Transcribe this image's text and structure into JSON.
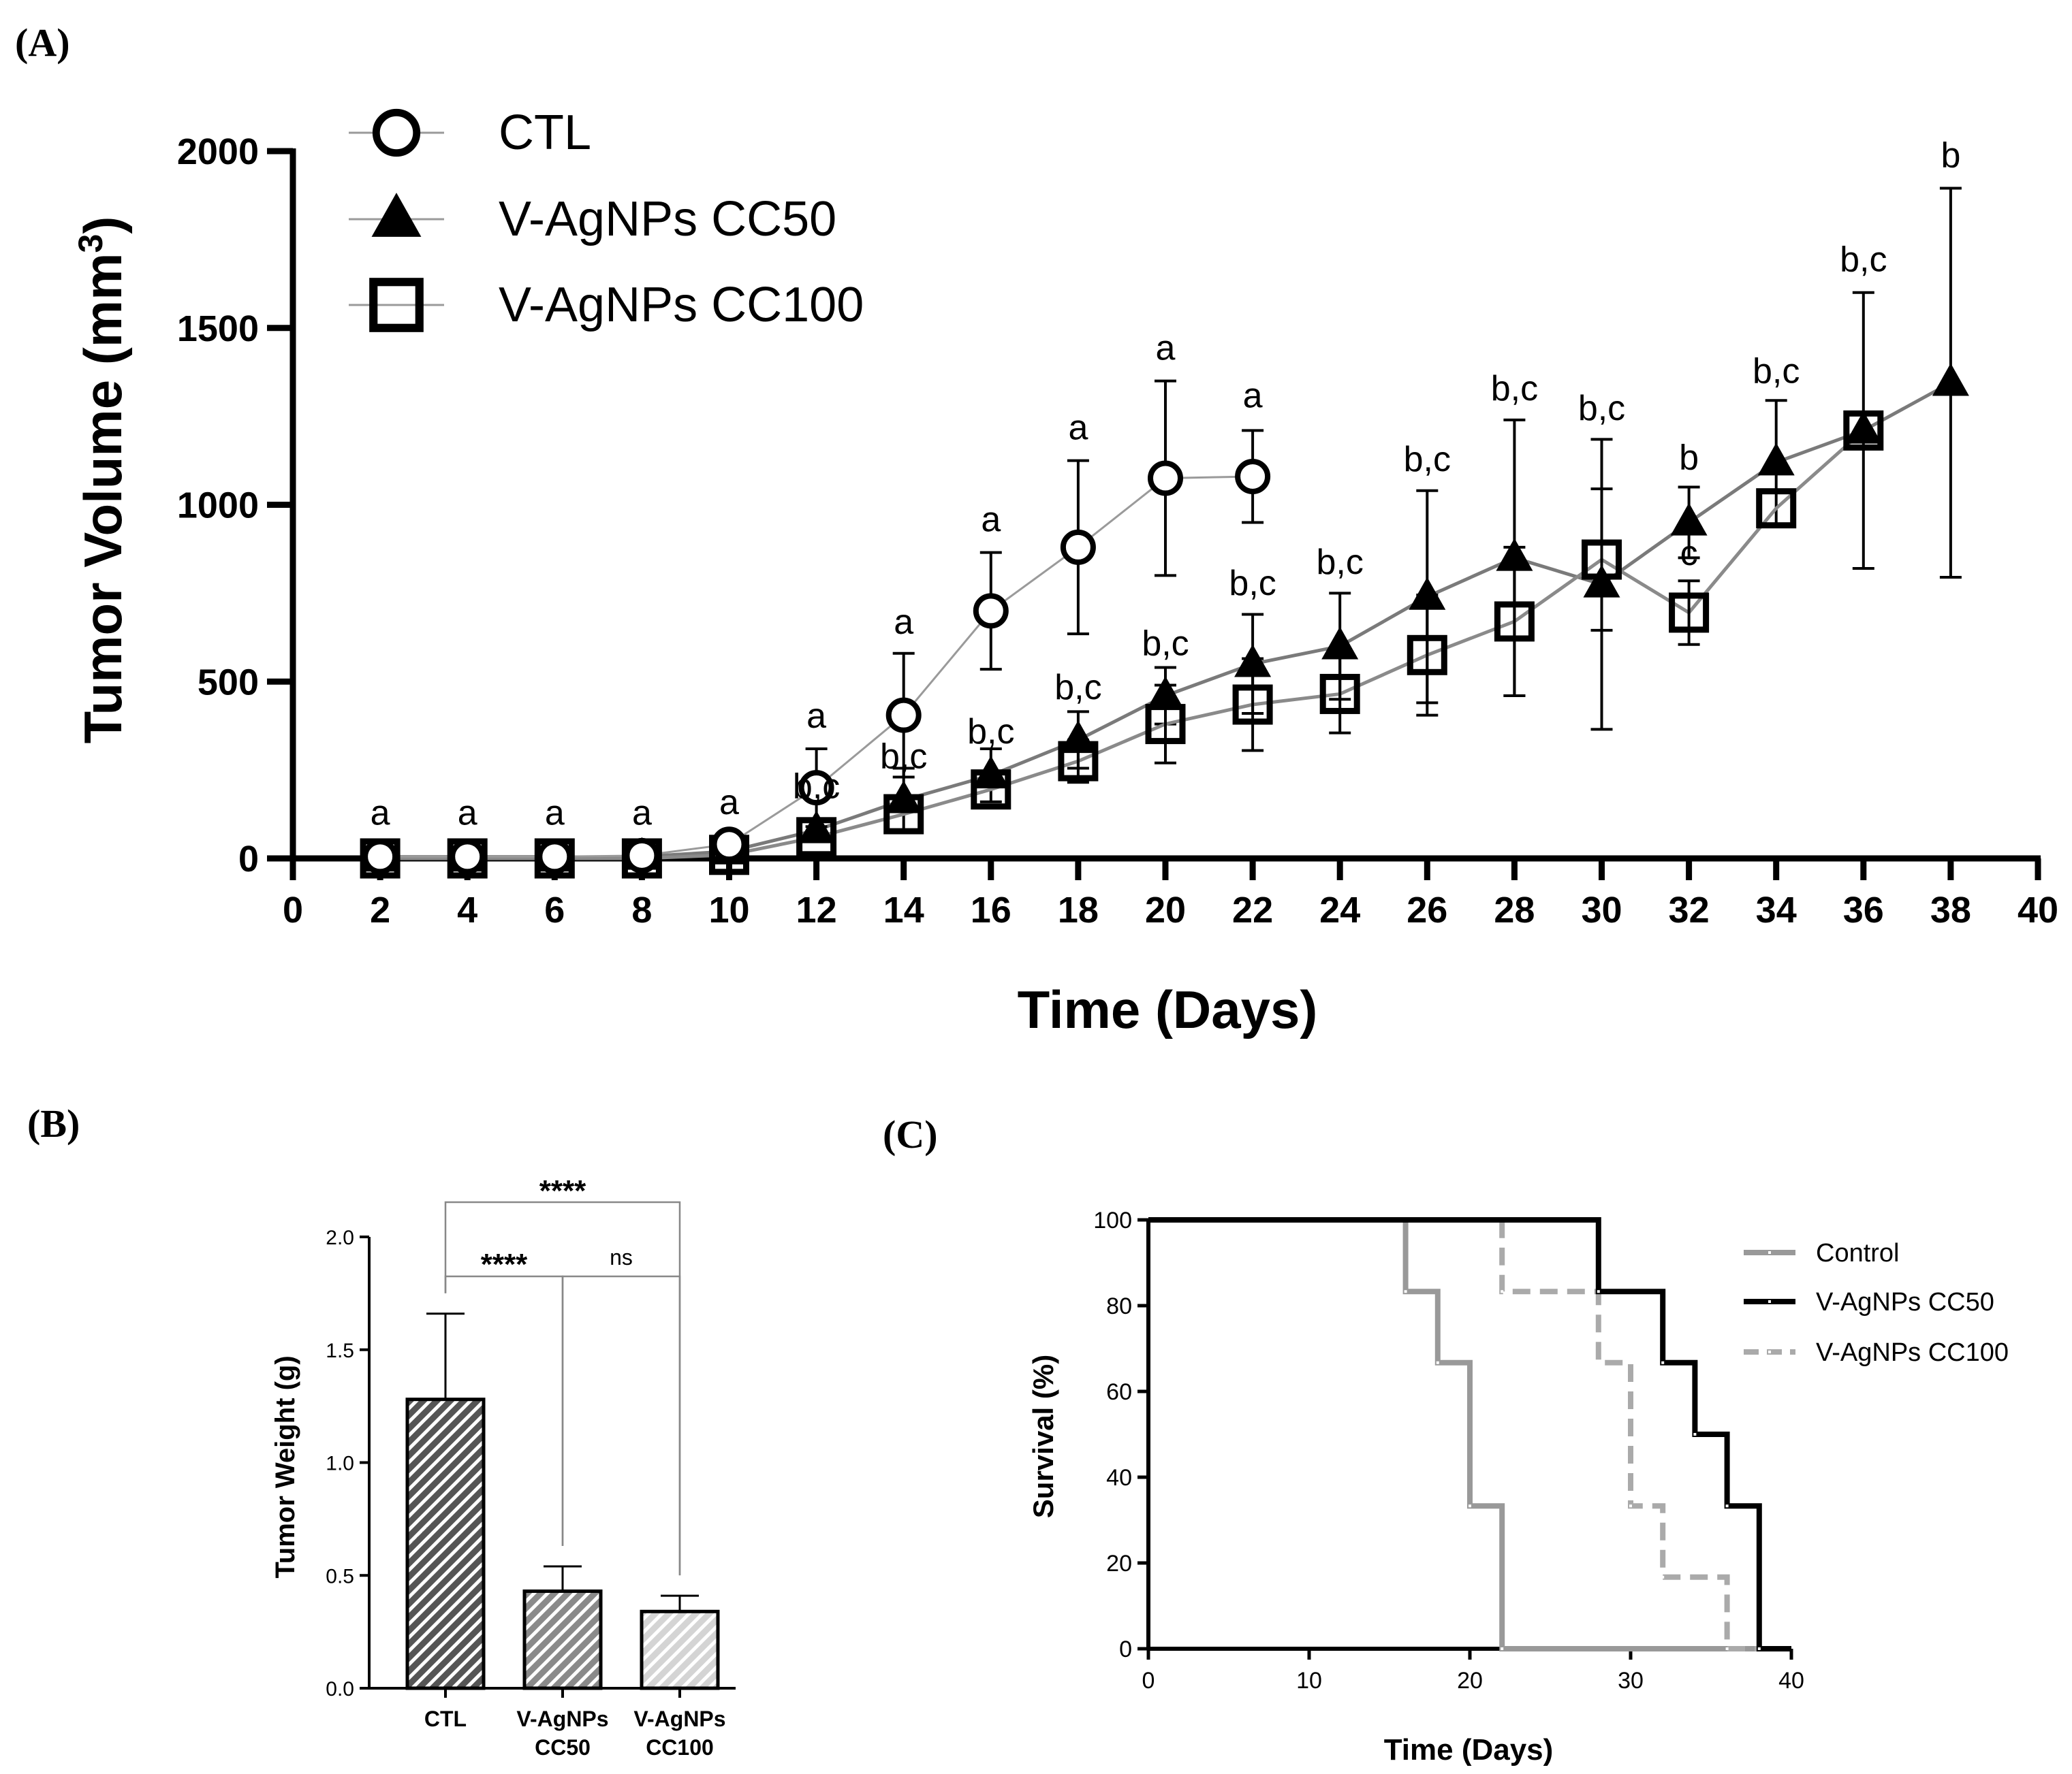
{
  "panel_labels": {
    "a": "(A)",
    "b": "(B)",
    "c": "(C)"
  },
  "chart_data": [
    {
      "id": "A",
      "type": "line",
      "xlabel": "Time (Days)",
      "ylabel": "Tumor Volume (mm",
      "ylabel_sup": "3",
      "ylabel_close": ")",
      "xlim": [
        0,
        40
      ],
      "ylim": [
        0,
        2000
      ],
      "xticks": [
        0,
        2,
        4,
        6,
        8,
        10,
        12,
        14,
        16,
        18,
        20,
        22,
        24,
        26,
        28,
        30,
        32,
        34,
        36,
        38,
        40
      ],
      "yticks": [
        0,
        500,
        1000,
        1500,
        2000
      ],
      "series": [
        {
          "name": "CTL",
          "marker": "open-circle",
          "x": [
            2,
            4,
            6,
            8,
            10,
            12,
            14,
            16,
            18,
            20,
            22
          ],
          "y": [
            5,
            5,
            5,
            8,
            40,
            200,
            405,
            700,
            880,
            1075,
            1080
          ],
          "err": [
            0,
            0,
            0,
            0,
            20,
            110,
            175,
            165,
            245,
            275,
            130
          ]
        },
        {
          "name": "V-AgNPs CC50",
          "marker": "filled-triangle",
          "x": [
            2,
            4,
            6,
            8,
            10,
            12,
            14,
            16,
            18,
            20,
            22,
            24,
            26,
            28,
            30,
            32,
            34,
            36,
            38
          ],
          "y": [
            0,
            0,
            0,
            5,
            20,
            80,
            165,
            235,
            335,
            460,
            550,
            600,
            740,
            850,
            775,
            950,
            1120,
            1210,
            1345
          ],
          "err": [
            0,
            0,
            0,
            0,
            0,
            0,
            90,
            75,
            80,
            80,
            140,
            150,
            300,
            390,
            410,
            100,
            175,
            390,
            550
          ]
        },
        {
          "name": "V-AgNPs CC100",
          "marker": "open-square",
          "x": [
            2,
            4,
            6,
            8,
            10,
            12,
            14,
            16,
            18,
            20,
            22,
            24,
            26,
            28,
            30,
            32,
            34,
            36
          ],
          "y": [
            0,
            0,
            0,
            0,
            10,
            60,
            125,
            195,
            275,
            380,
            435,
            465,
            575,
            670,
            845,
            695,
            990,
            1210
          ],
          "err": [
            0,
            0,
            0,
            0,
            0,
            0,
            0,
            0,
            60,
            110,
            130,
            110,
            170,
            210,
            200,
            90,
            0,
            0
          ]
        }
      ],
      "annotations": [
        {
          "x": 2,
          "y": 95,
          "text": "a"
        },
        {
          "x": 4,
          "y": 95,
          "text": "a"
        },
        {
          "x": 6,
          "y": 95,
          "text": "a"
        },
        {
          "x": 8,
          "y": 95,
          "text": "a"
        },
        {
          "x": 10,
          "y": 125,
          "text": "a"
        },
        {
          "x": 12,
          "y": 370,
          "text": "a"
        },
        {
          "x": 12,
          "y": 170,
          "text": "b,c"
        },
        {
          "x": 14,
          "y": 635,
          "text": "a"
        },
        {
          "x": 14,
          "y": 255,
          "text": "b,c"
        },
        {
          "x": 16,
          "y": 925,
          "text": "a"
        },
        {
          "x": 16,
          "y": 325,
          "text": "b,c"
        },
        {
          "x": 18,
          "y": 1185,
          "text": "a"
        },
        {
          "x": 18,
          "y": 450,
          "text": "b,c"
        },
        {
          "x": 20,
          "y": 1410,
          "text": "a"
        },
        {
          "x": 20,
          "y": 575,
          "text": "b,c"
        },
        {
          "x": 22,
          "y": 1275,
          "text": "a"
        },
        {
          "x": 22,
          "y": 745,
          "text": "b,c"
        },
        {
          "x": 24,
          "y": 805,
          "text": "b,c"
        },
        {
          "x": 26,
          "y": 1095,
          "text": "b,c"
        },
        {
          "x": 28,
          "y": 1295,
          "text": "b,c"
        },
        {
          "x": 30,
          "y": 1240,
          "text": "b,c"
        },
        {
          "x": 32,
          "y": 1100,
          "text": "b"
        },
        {
          "x": 32,
          "y": 830,
          "text": "c"
        },
        {
          "x": 34,
          "y": 1345,
          "text": "b,c"
        },
        {
          "x": 36,
          "y": 1660,
          "text": "b,c"
        },
        {
          "x": 38,
          "y": 1955,
          "text": "b"
        }
      ],
      "legend": "top-left"
    },
    {
      "id": "B",
      "type": "bar",
      "ylabel": "Tumor Weight (g)",
      "ylim": [
        0,
        2.0
      ],
      "yticks": [
        "0.0",
        "0.5",
        "1.0",
        "1.5",
        "2.0"
      ],
      "categories": [
        "CTL",
        "V-AgNPs CC50",
        "V-AgNPs CC100"
      ],
      "category_lines": [
        [
          "CTL"
        ],
        [
          "V-AgNPs",
          "CC50"
        ],
        [
          "V-AgNPs",
          "CC100"
        ]
      ],
      "values": [
        1.28,
        0.43,
        0.34
      ],
      "err": [
        0.38,
        0.11,
        0.07
      ],
      "fills": [
        "#555555",
        "#8a8a8a",
        "#d4d4d4"
      ],
      "significance": [
        {
          "from": 0,
          "to": 2,
          "label": "****"
        },
        {
          "from": 0,
          "to": 1,
          "label": "****"
        },
        {
          "from": 1,
          "to": 2,
          "label": "ns"
        }
      ]
    },
    {
      "id": "C",
      "type": "line",
      "subtype": "survival-step",
      "xlabel": "Time (Days)",
      "ylabel": "Survival (%)",
      "xlim": [
        0,
        40
      ],
      "ylim": [
        0,
        100
      ],
      "xticks": [
        0,
        10,
        20,
        30,
        40
      ],
      "yticks": [
        0,
        20,
        40,
        60,
        80,
        100
      ],
      "series": [
        {
          "name": "Control",
          "color": "#999999",
          "dash": "solid",
          "x": [
            0,
            16,
            18,
            20,
            22
          ],
          "y": [
            100,
            83.3,
            66.7,
            33.3,
            0
          ]
        },
        {
          "name": "V-AgNPs CC50",
          "color": "#000000",
          "dash": "solid",
          "x": [
            0,
            28,
            32,
            34,
            36,
            38
          ],
          "y": [
            100,
            83.3,
            66.7,
            50,
            33.3,
            0
          ]
        },
        {
          "name": "V-AgNPs CC100",
          "color": "#aaaaaa",
          "dash": "dashed",
          "x": [
            0,
            22,
            28,
            30,
            32,
            36
          ],
          "y": [
            100,
            83.3,
            66.7,
            33.3,
            16.7,
            0
          ]
        }
      ],
      "legend": "top-right"
    }
  ]
}
